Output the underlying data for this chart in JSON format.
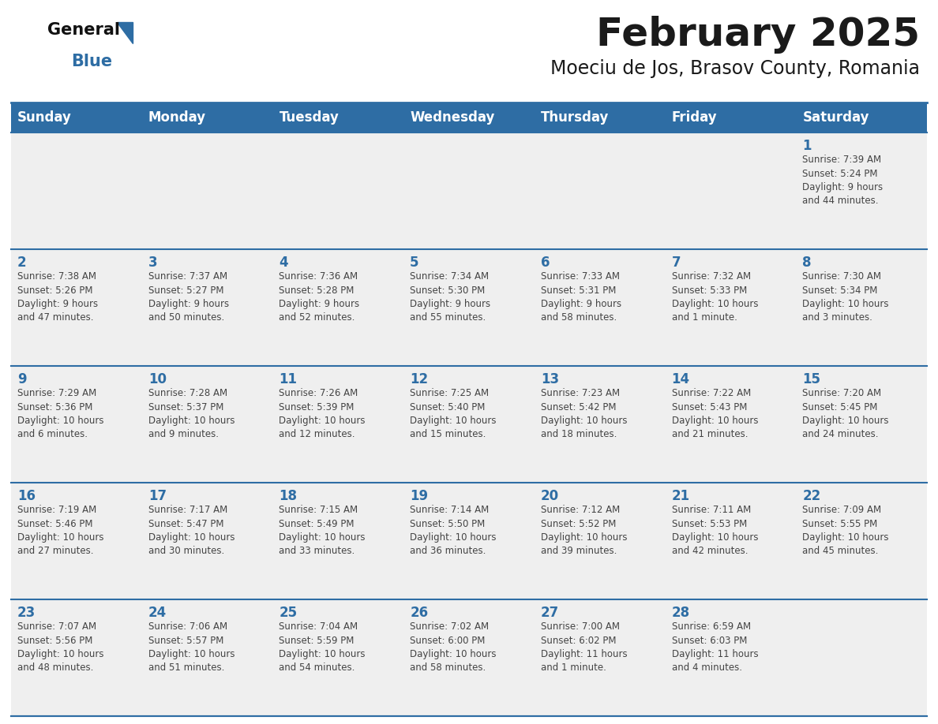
{
  "title": "February 2025",
  "subtitle": "Moeciu de Jos, Brasov County, Romania",
  "header_bg": "#2E6DA4",
  "header_text": "#FFFFFF",
  "cell_bg": "#EFEFEF",
  "day_number_color": "#2E6DA4",
  "cell_text_color": "#444444",
  "border_color": "#2E6DA4",
  "days_of_week": [
    "Sunday",
    "Monday",
    "Tuesday",
    "Wednesday",
    "Thursday",
    "Friday",
    "Saturday"
  ],
  "weeks": [
    [
      {
        "day": null,
        "info": null
      },
      {
        "day": null,
        "info": null
      },
      {
        "day": null,
        "info": null
      },
      {
        "day": null,
        "info": null
      },
      {
        "day": null,
        "info": null
      },
      {
        "day": null,
        "info": null
      },
      {
        "day": 1,
        "info": "Sunrise: 7:39 AM\nSunset: 5:24 PM\nDaylight: 9 hours\nand 44 minutes."
      }
    ],
    [
      {
        "day": 2,
        "info": "Sunrise: 7:38 AM\nSunset: 5:26 PM\nDaylight: 9 hours\nand 47 minutes."
      },
      {
        "day": 3,
        "info": "Sunrise: 7:37 AM\nSunset: 5:27 PM\nDaylight: 9 hours\nand 50 minutes."
      },
      {
        "day": 4,
        "info": "Sunrise: 7:36 AM\nSunset: 5:28 PM\nDaylight: 9 hours\nand 52 minutes."
      },
      {
        "day": 5,
        "info": "Sunrise: 7:34 AM\nSunset: 5:30 PM\nDaylight: 9 hours\nand 55 minutes."
      },
      {
        "day": 6,
        "info": "Sunrise: 7:33 AM\nSunset: 5:31 PM\nDaylight: 9 hours\nand 58 minutes."
      },
      {
        "day": 7,
        "info": "Sunrise: 7:32 AM\nSunset: 5:33 PM\nDaylight: 10 hours\nand 1 minute."
      },
      {
        "day": 8,
        "info": "Sunrise: 7:30 AM\nSunset: 5:34 PM\nDaylight: 10 hours\nand 3 minutes."
      }
    ],
    [
      {
        "day": 9,
        "info": "Sunrise: 7:29 AM\nSunset: 5:36 PM\nDaylight: 10 hours\nand 6 minutes."
      },
      {
        "day": 10,
        "info": "Sunrise: 7:28 AM\nSunset: 5:37 PM\nDaylight: 10 hours\nand 9 minutes."
      },
      {
        "day": 11,
        "info": "Sunrise: 7:26 AM\nSunset: 5:39 PM\nDaylight: 10 hours\nand 12 minutes."
      },
      {
        "day": 12,
        "info": "Sunrise: 7:25 AM\nSunset: 5:40 PM\nDaylight: 10 hours\nand 15 minutes."
      },
      {
        "day": 13,
        "info": "Sunrise: 7:23 AM\nSunset: 5:42 PM\nDaylight: 10 hours\nand 18 minutes."
      },
      {
        "day": 14,
        "info": "Sunrise: 7:22 AM\nSunset: 5:43 PM\nDaylight: 10 hours\nand 21 minutes."
      },
      {
        "day": 15,
        "info": "Sunrise: 7:20 AM\nSunset: 5:45 PM\nDaylight: 10 hours\nand 24 minutes."
      }
    ],
    [
      {
        "day": 16,
        "info": "Sunrise: 7:19 AM\nSunset: 5:46 PM\nDaylight: 10 hours\nand 27 minutes."
      },
      {
        "day": 17,
        "info": "Sunrise: 7:17 AM\nSunset: 5:47 PM\nDaylight: 10 hours\nand 30 minutes."
      },
      {
        "day": 18,
        "info": "Sunrise: 7:15 AM\nSunset: 5:49 PM\nDaylight: 10 hours\nand 33 minutes."
      },
      {
        "day": 19,
        "info": "Sunrise: 7:14 AM\nSunset: 5:50 PM\nDaylight: 10 hours\nand 36 minutes."
      },
      {
        "day": 20,
        "info": "Sunrise: 7:12 AM\nSunset: 5:52 PM\nDaylight: 10 hours\nand 39 minutes."
      },
      {
        "day": 21,
        "info": "Sunrise: 7:11 AM\nSunset: 5:53 PM\nDaylight: 10 hours\nand 42 minutes."
      },
      {
        "day": 22,
        "info": "Sunrise: 7:09 AM\nSunset: 5:55 PM\nDaylight: 10 hours\nand 45 minutes."
      }
    ],
    [
      {
        "day": 23,
        "info": "Sunrise: 7:07 AM\nSunset: 5:56 PM\nDaylight: 10 hours\nand 48 minutes."
      },
      {
        "day": 24,
        "info": "Sunrise: 7:06 AM\nSunset: 5:57 PM\nDaylight: 10 hours\nand 51 minutes."
      },
      {
        "day": 25,
        "info": "Sunrise: 7:04 AM\nSunset: 5:59 PM\nDaylight: 10 hours\nand 54 minutes."
      },
      {
        "day": 26,
        "info": "Sunrise: 7:02 AM\nSunset: 6:00 PM\nDaylight: 10 hours\nand 58 minutes."
      },
      {
        "day": 27,
        "info": "Sunrise: 7:00 AM\nSunset: 6:02 PM\nDaylight: 11 hours\nand 1 minute."
      },
      {
        "day": 28,
        "info": "Sunrise: 6:59 AM\nSunset: 6:03 PM\nDaylight: 11 hours\nand 4 minutes."
      },
      {
        "day": null,
        "info": null
      }
    ]
  ]
}
